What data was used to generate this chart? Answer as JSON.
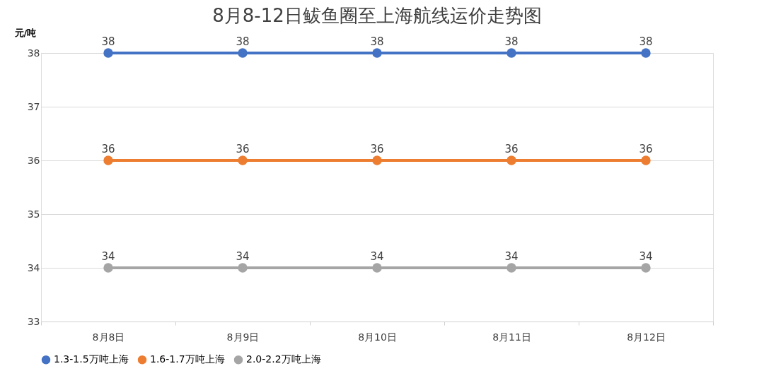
{
  "chart_data": {
    "type": "line",
    "title": "8月8-12日鲅鱼圈至上海航线运价走势图",
    "ylabel": "元/吨",
    "categories": [
      "8月8日",
      "8月9日",
      "8月10日",
      "8月11日",
      "8月12日"
    ],
    "series": [
      {
        "name": "1.3-1.5万吨上海",
        "color": "#4472c4",
        "values": [
          38,
          38,
          38,
          38,
          38
        ]
      },
      {
        "name": "1.6-1.7万吨上海",
        "color": "#ed7d31",
        "values": [
          36,
          36,
          36,
          36,
          36
        ]
      },
      {
        "name": "2.0-2.2万吨上海",
        "color": "#a5a5a5",
        "values": [
          34,
          34,
          34,
          34,
          34
        ]
      }
    ],
    "ylim": [
      33,
      38
    ],
    "yticks": [
      33,
      34,
      35,
      36,
      37,
      38
    ],
    "grid": "y",
    "legend": "bottom",
    "marker": "circle",
    "line_style": "solid",
    "data_labels": true
  }
}
